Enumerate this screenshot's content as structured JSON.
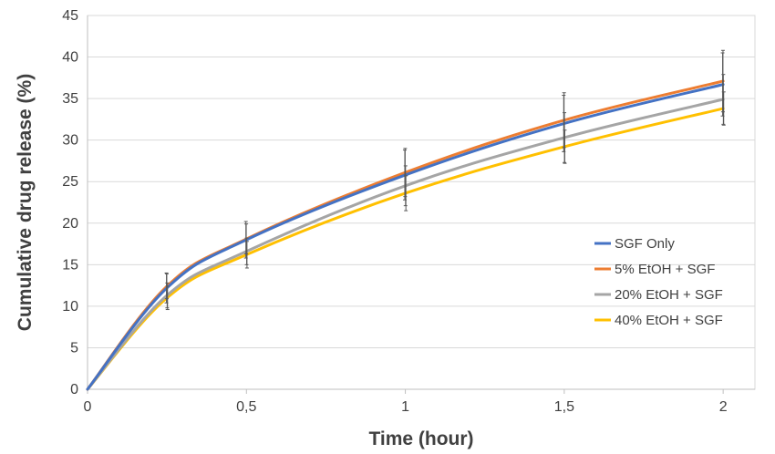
{
  "chart_data": {
    "type": "line",
    "title": "",
    "xlabel": "Time (hour)",
    "ylabel": "Cumulative drug release (%)",
    "xlim": [
      0,
      2.1
    ],
    "ylim": [
      0,
      45
    ],
    "x_ticks": [
      0,
      0.5,
      1,
      1.5,
      2
    ],
    "x_tick_labels": [
      "0",
      "0,5",
      "1",
      "1,5",
      "2"
    ],
    "y_ticks": [
      0,
      5,
      10,
      15,
      20,
      25,
      30,
      35,
      40,
      45
    ],
    "y_tick_labels": [
      "0",
      "5",
      "10",
      "15",
      "20",
      "25",
      "30",
      "35",
      "40",
      "45"
    ],
    "grid": "horizontal",
    "legend_position": "right",
    "x": [
      0,
      0.25,
      0.5,
      1,
      1.5,
      2
    ],
    "series": [
      {
        "name": "SGF Only",
        "color": "#4472c4",
        "values": [
          0,
          12.2,
          18.0,
          25.8,
          32.0,
          36.7
        ],
        "errors": [
          0,
          1.8,
          2.2,
          3.0,
          3.4,
          3.8
        ]
      },
      {
        "name": "5% EtOH + SGF",
        "color": "#ed7d31",
        "values": [
          0,
          12.4,
          18.1,
          26.1,
          32.4,
          37.1
        ],
        "errors": [
          0,
          1.5,
          1.8,
          2.9,
          3.3,
          3.7
        ]
      },
      {
        "name": "20% EtOH + SGF",
        "color": "#a5a5a5",
        "values": [
          0,
          11.3,
          16.6,
          24.5,
          30.3,
          34.9
        ],
        "errors": [
          0,
          1.5,
          1.6,
          2.4,
          3.0,
          3.0
        ]
      },
      {
        "name": "40% EtOH + SGF",
        "color": "#ffc000",
        "values": [
          0,
          11.0,
          16.2,
          23.6,
          29.2,
          33.8
        ],
        "errors": [
          0,
          1.4,
          1.6,
          2.1,
          2.0,
          2.0
        ]
      }
    ]
  }
}
